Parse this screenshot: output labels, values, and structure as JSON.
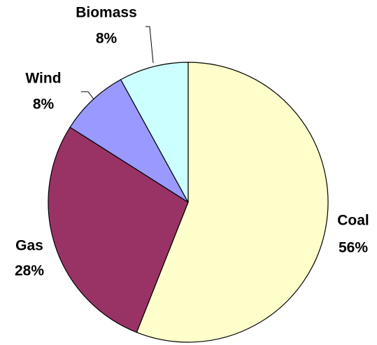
{
  "chart_data": {
    "type": "pie",
    "categories": [
      "Coal",
      "Gas",
      "Wind",
      "Biomass"
    ],
    "values": [
      56,
      28,
      8,
      8
    ],
    "value_labels": [
      "56%",
      "28%",
      "8%",
      "8%"
    ],
    "colors": [
      "#ffffcc",
      "#993366",
      "#9999ff",
      "#ccffff"
    ]
  }
}
